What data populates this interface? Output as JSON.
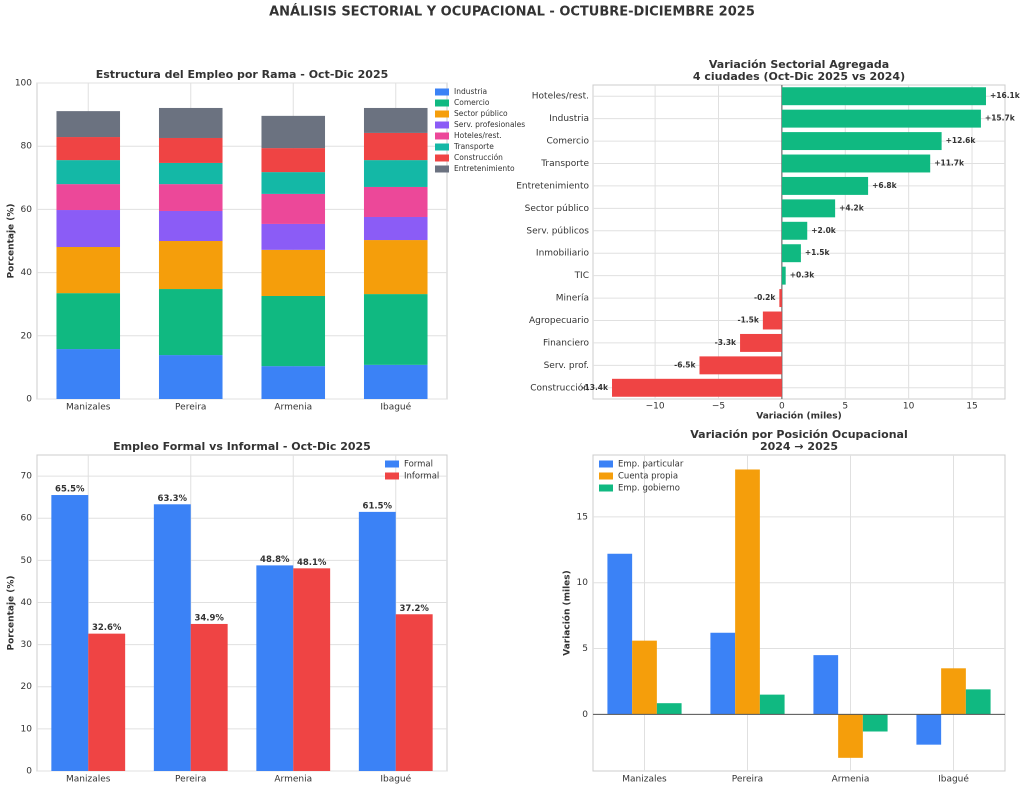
{
  "title": "ANÁLISIS SECTORIAL Y OCUPACIONAL - OCTUBRE-DICIEMBRE 2025",
  "chart_data": [
    {
      "type": "stacked_bar",
      "title": [
        "Estructura del Empleo por Rama - Oct-Dic 2025"
      ],
      "ylabel": "Porcentaje (%)",
      "categories": [
        "Manizales",
        "Pereira",
        "Armenia",
        "Ibagué"
      ],
      "series": [
        {
          "name": "Industria",
          "color": "#3b82f6",
          "values": [
            15.8,
            13.9,
            10.4,
            10.8
          ]
        },
        {
          "name": "Comercio",
          "color": "#10b981",
          "values": [
            17.7,
            20.9,
            22.2,
            22.4
          ]
        },
        {
          "name": "Sector público",
          "color": "#f59e0b",
          "values": [
            14.6,
            15.2,
            14.6,
            17.1
          ]
        },
        {
          "name": "Serv. profesionales",
          "color": "#8b5cf6",
          "values": [
            11.7,
            9.5,
            8.2,
            7.3
          ]
        },
        {
          "name": "Hoteles/rest.",
          "color": "#ec4899",
          "values": [
            8.2,
            8.5,
            9.5,
            9.5
          ]
        },
        {
          "name": "Transporte",
          "color": "#14b8a6",
          "values": [
            7.6,
            6.7,
            6.9,
            8.5
          ]
        },
        {
          "name": "Construcción",
          "color": "#ef4444",
          "values": [
            7.3,
            7.9,
            7.6,
            8.6
          ]
        },
        {
          "name": "Entretenimiento",
          "color": "#6b7280",
          "values": [
            8.2,
            9.5,
            10.2,
            7.9
          ]
        }
      ],
      "ylim": [
        0,
        100
      ],
      "yticks": [
        0,
        20,
        40,
        60,
        80,
        100
      ],
      "grid": true,
      "legend": "outside upper right"
    },
    {
      "type": "hbar",
      "title": [
        "Variación Sectorial Agregada",
        "4 ciudades (Oct-Dic 2025 vs 2024)"
      ],
      "xlabel": "Variación (miles)",
      "categories": [
        "Hoteles/rest.",
        "Industria",
        "Comercio",
        "Transporte",
        "Entretenimiento",
        "Sector público",
        "Serv. públicos",
        "Inmobiliario",
        "TIC",
        "Minería",
        "Agropecuario",
        "Financiero",
        "Serv. prof.",
        "Construcción"
      ],
      "values": [
        16.1,
        15.7,
        12.6,
        11.7,
        6.8,
        4.2,
        2.0,
        1.5,
        0.3,
        -0.2,
        -1.5,
        -3.3,
        -6.5,
        -13.4
      ],
      "value_labels": [
        "+16.1k",
        "+15.7k",
        "+12.6k",
        "+11.7k",
        "+6.8k",
        "+4.2k",
        "+2.0k",
        "+1.5k",
        "+0.3k",
        "-0.2k",
        "-1.5k",
        "-3.3k",
        "-6.5k",
        "-13.4k"
      ],
      "positive_color": "#10b981",
      "negative_color": "#ef4444",
      "xlim": [
        -14.9,
        17.6
      ],
      "xticks": [
        {
          "value": -10,
          "label": "−10"
        },
        {
          "value": -5,
          "label": "−5"
        },
        0,
        5,
        10,
        15
      ],
      "grid": true
    },
    {
      "type": "grouped_bar",
      "title": [
        "Empleo Formal vs Informal - Oct-Dic 2025"
      ],
      "ylabel": "Porcentaje (%)",
      "categories": [
        "Manizales",
        "Pereira",
        "Armenia",
        "Ibagué"
      ],
      "series": [
        {
          "name": "Formal",
          "color": "#3b82f6",
          "values": [
            65.5,
            63.3,
            48.8,
            61.5
          ],
          "value_labels": [
            "65.5%",
            "63.3%",
            "48.8%",
            "61.5%"
          ]
        },
        {
          "name": "Informal",
          "color": "#ef4444",
          "values": [
            32.6,
            34.9,
            48.1,
            37.2
          ],
          "value_labels": [
            "32.6%",
            "34.9%",
            "48.1%",
            "37.2%"
          ]
        }
      ],
      "ylim": [
        0,
        75
      ],
      "yticks": [
        0,
        10,
        20,
        30,
        40,
        50,
        60,
        70
      ],
      "grid": true,
      "legend": "upper right"
    },
    {
      "type": "grouped_bar",
      "title": [
        "Variación por Posición Ocupacional",
        "2024 → 2025"
      ],
      "ylabel": "Variación (miles)",
      "categories": [
        "Manizales",
        "Pereira",
        "Armenia",
        "Ibagué"
      ],
      "series": [
        {
          "name": "Emp. particular",
          "color": "#3b82f6",
          "values": [
            12.2,
            6.2,
            4.5,
            -2.3
          ]
        },
        {
          "name": "Cuenta propia",
          "color": "#f59e0b",
          "values": [
            5.6,
            18.6,
            -3.3,
            3.5
          ]
        },
        {
          "name": "Emp. gobierno",
          "color": "#10b981",
          "values": [
            0.85,
            1.5,
            -1.3,
            1.9
          ]
        }
      ],
      "ylim": [
        -4.3,
        19.7
      ],
      "yticks": [
        0,
        5,
        10,
        15
      ],
      "grid": true,
      "legend": "upper left",
      "zero_line": true
    }
  ]
}
